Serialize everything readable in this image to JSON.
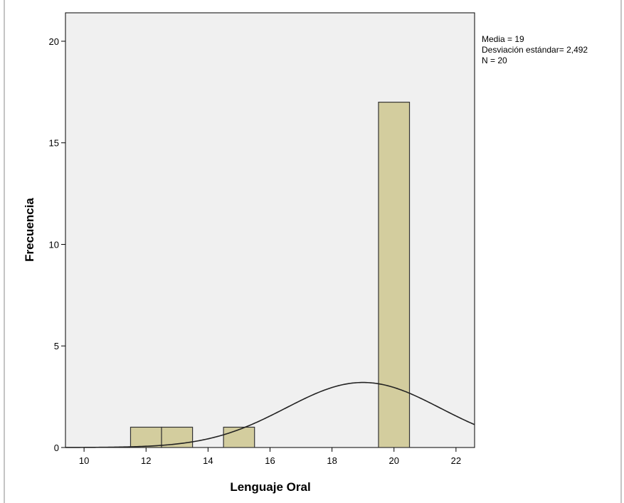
{
  "chart_data": {
    "type": "bar",
    "subtype": "histogram",
    "xlabel": "Lenguaje Oral",
    "ylabel": "Frecuencia",
    "xlim": [
      9.4,
      22.6
    ],
    "ylim": [
      0,
      21.4
    ],
    "x_ticks": [
      10,
      12,
      14,
      16,
      18,
      20,
      22
    ],
    "y_ticks": [
      0,
      5,
      10,
      15,
      20
    ],
    "bars": [
      {
        "start": 11.5,
        "end": 12.5,
        "value": 1
      },
      {
        "start": 12.5,
        "end": 13.5,
        "value": 1
      },
      {
        "start": 14.5,
        "end": 15.5,
        "value": 1
      },
      {
        "start": 19.5,
        "end": 20.5,
        "value": 17
      }
    ],
    "normal_curve": {
      "mean": 19,
      "sd": 2.492,
      "n": 20,
      "bin_width": 1
    },
    "stats": {
      "mean_label": "Media = 19",
      "sd_label": "Desviación estándar= 2,492",
      "n_label": "N = 20"
    },
    "colors": {
      "bar_fill": "#d3cd9e",
      "bar_stroke": "#333333",
      "plot_background": "#f0f0f0",
      "curve": "#222222"
    },
    "grid": false,
    "legend": "none"
  }
}
